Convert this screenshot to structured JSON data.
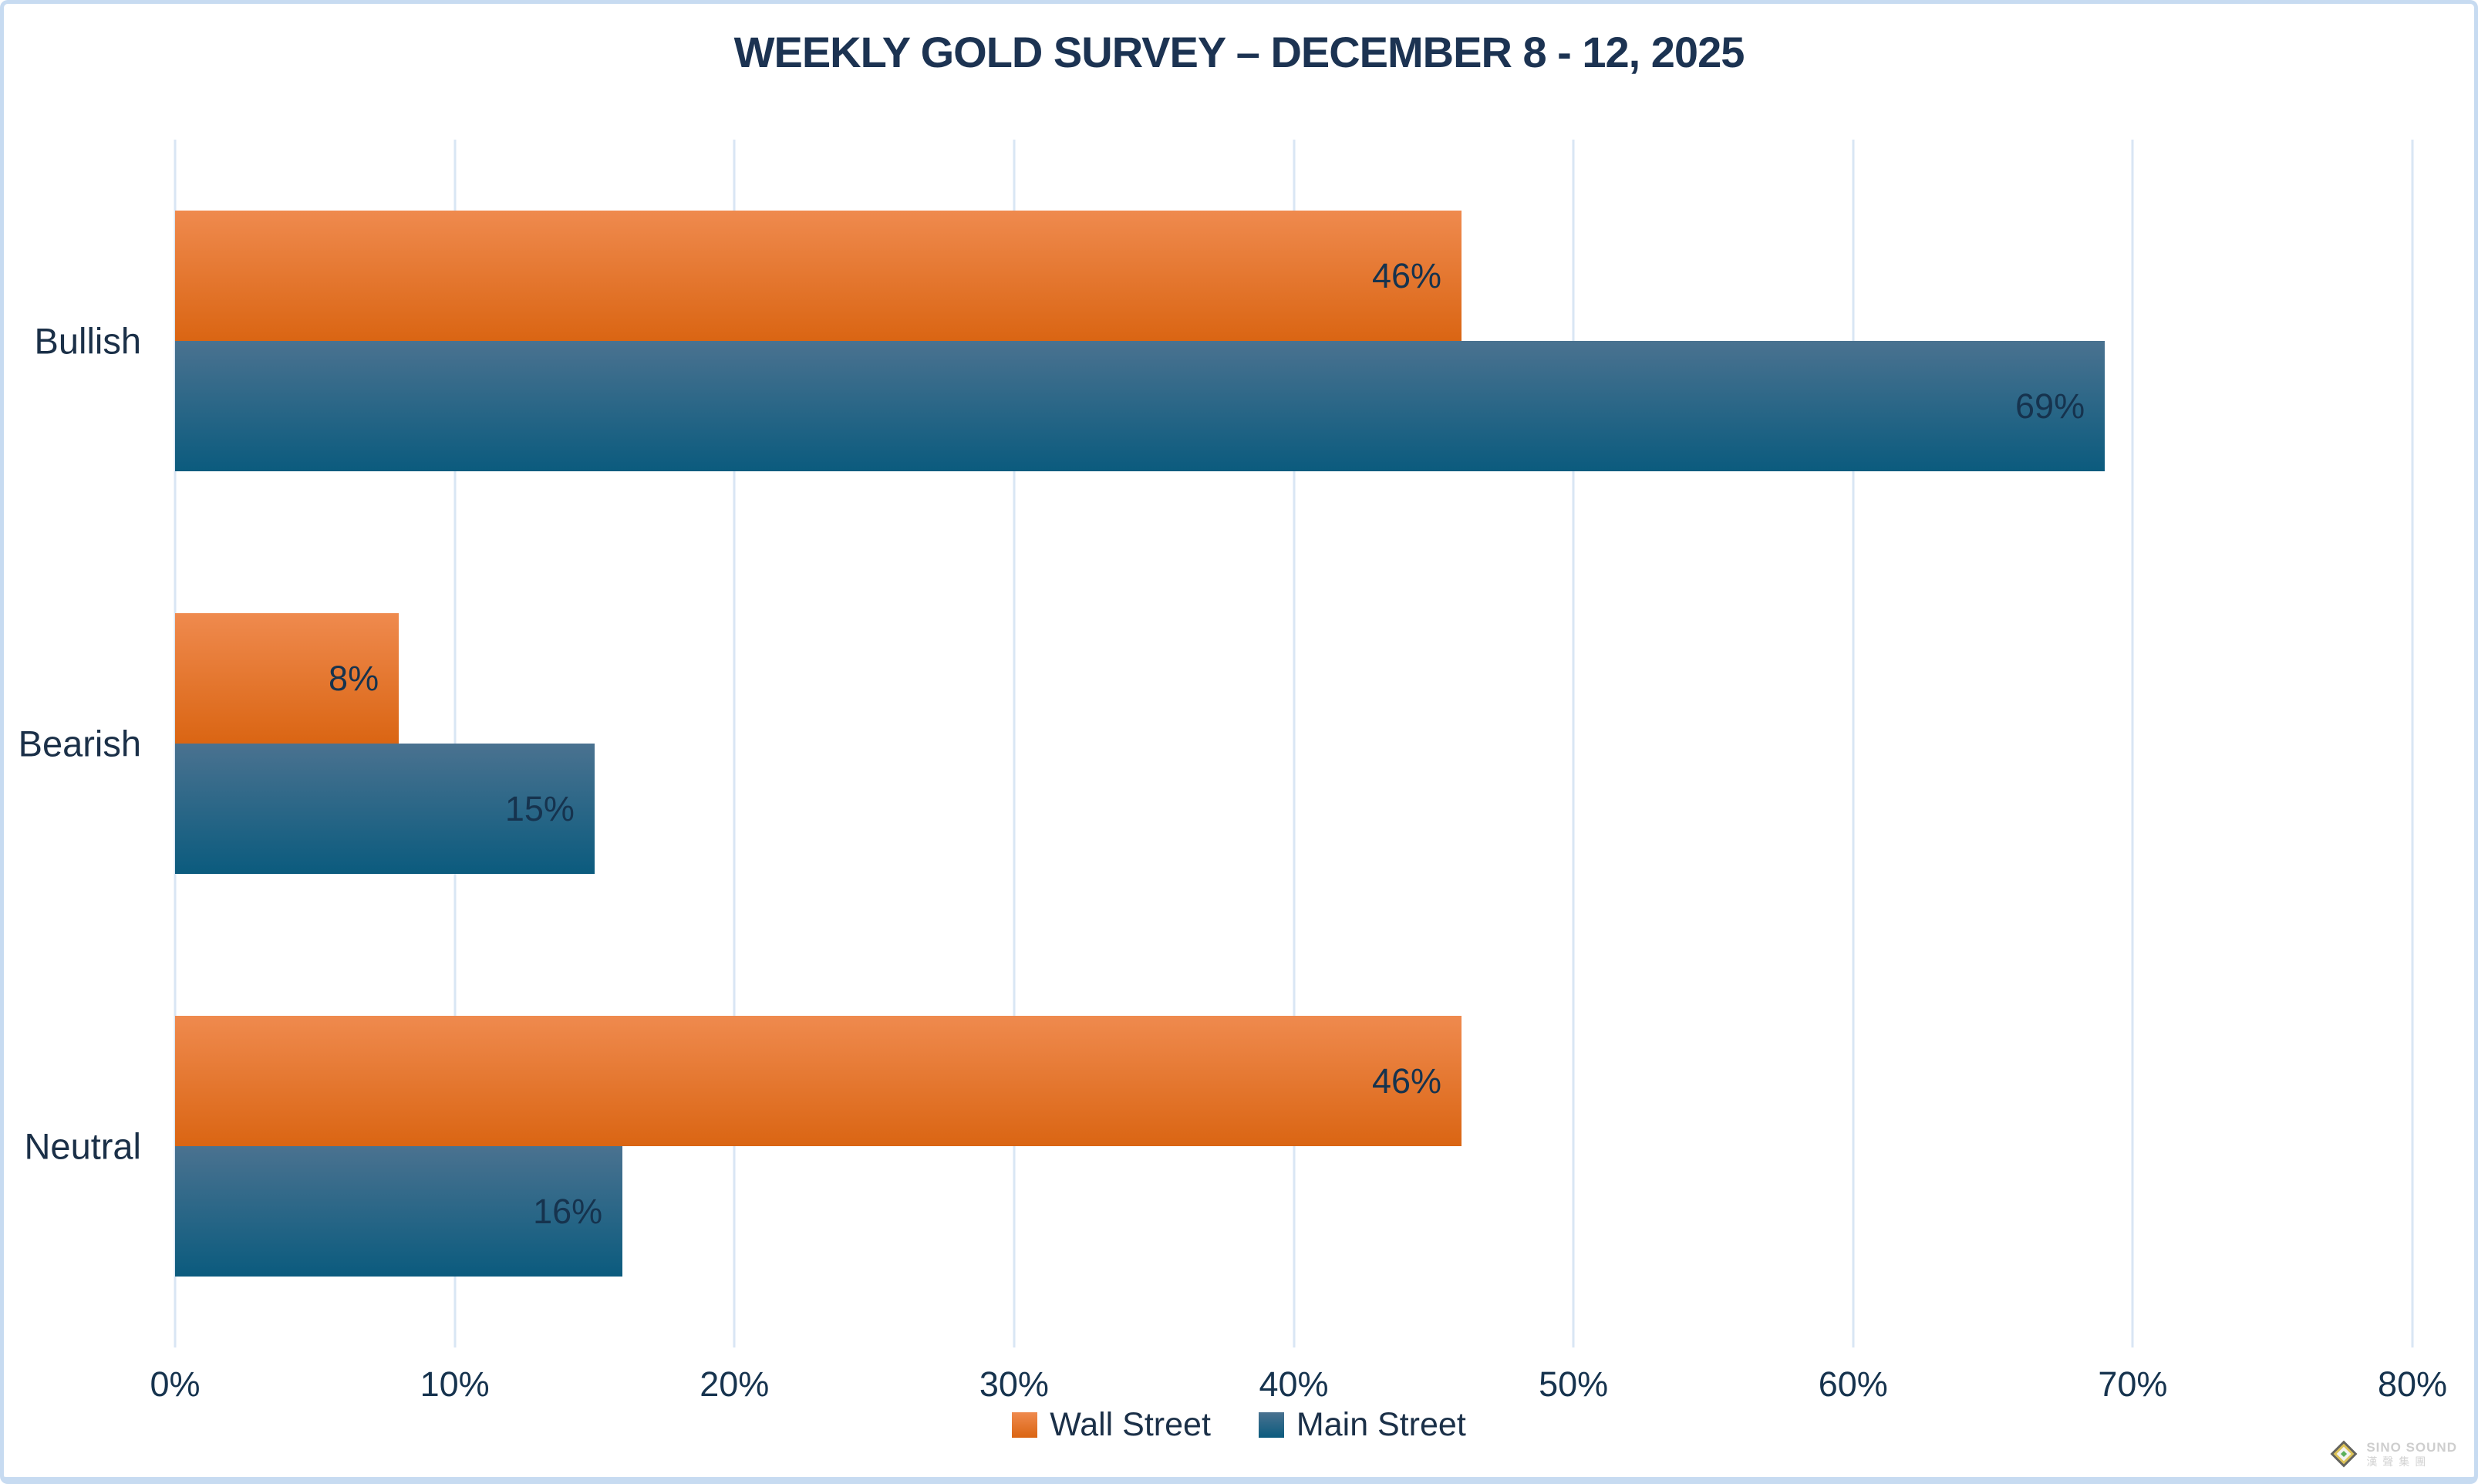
{
  "chart_data": {
    "type": "bar",
    "orientation": "horizontal",
    "title": "WEEKLY GOLD SURVEY – DECEMBER 8 - 12, 2025",
    "categories": [
      "Bullish",
      "Bearish",
      "Neutral"
    ],
    "series": [
      {
        "name": "Wall Street",
        "values": [
          46,
          8,
          46
        ],
        "color_top": "#EF8A4E",
        "color_bottom": "#DA6513"
      },
      {
        "name": "Main Street",
        "values": [
          69,
          15,
          16
        ],
        "color_top": "#4A7290",
        "color_bottom": "#0B5B7E"
      }
    ],
    "value_suffix": "%",
    "xlim": [
      0,
      80
    ],
    "x_ticks": [
      "0%",
      "10%",
      "20%",
      "30%",
      "40%",
      "50%",
      "60%",
      "70%",
      "80%"
    ],
    "grid": true,
    "legend_position": "bottom",
    "data_labels": "inside-end"
  },
  "colors": {
    "frame_border": "#C7DBF1",
    "gridline": "#D9E6F4",
    "title_text": "#1C3352",
    "label_text": "#16334E",
    "background": "#FFFFFF"
  },
  "watermark": {
    "line1": "SINO SOUND",
    "line2": "漢聲集團"
  }
}
